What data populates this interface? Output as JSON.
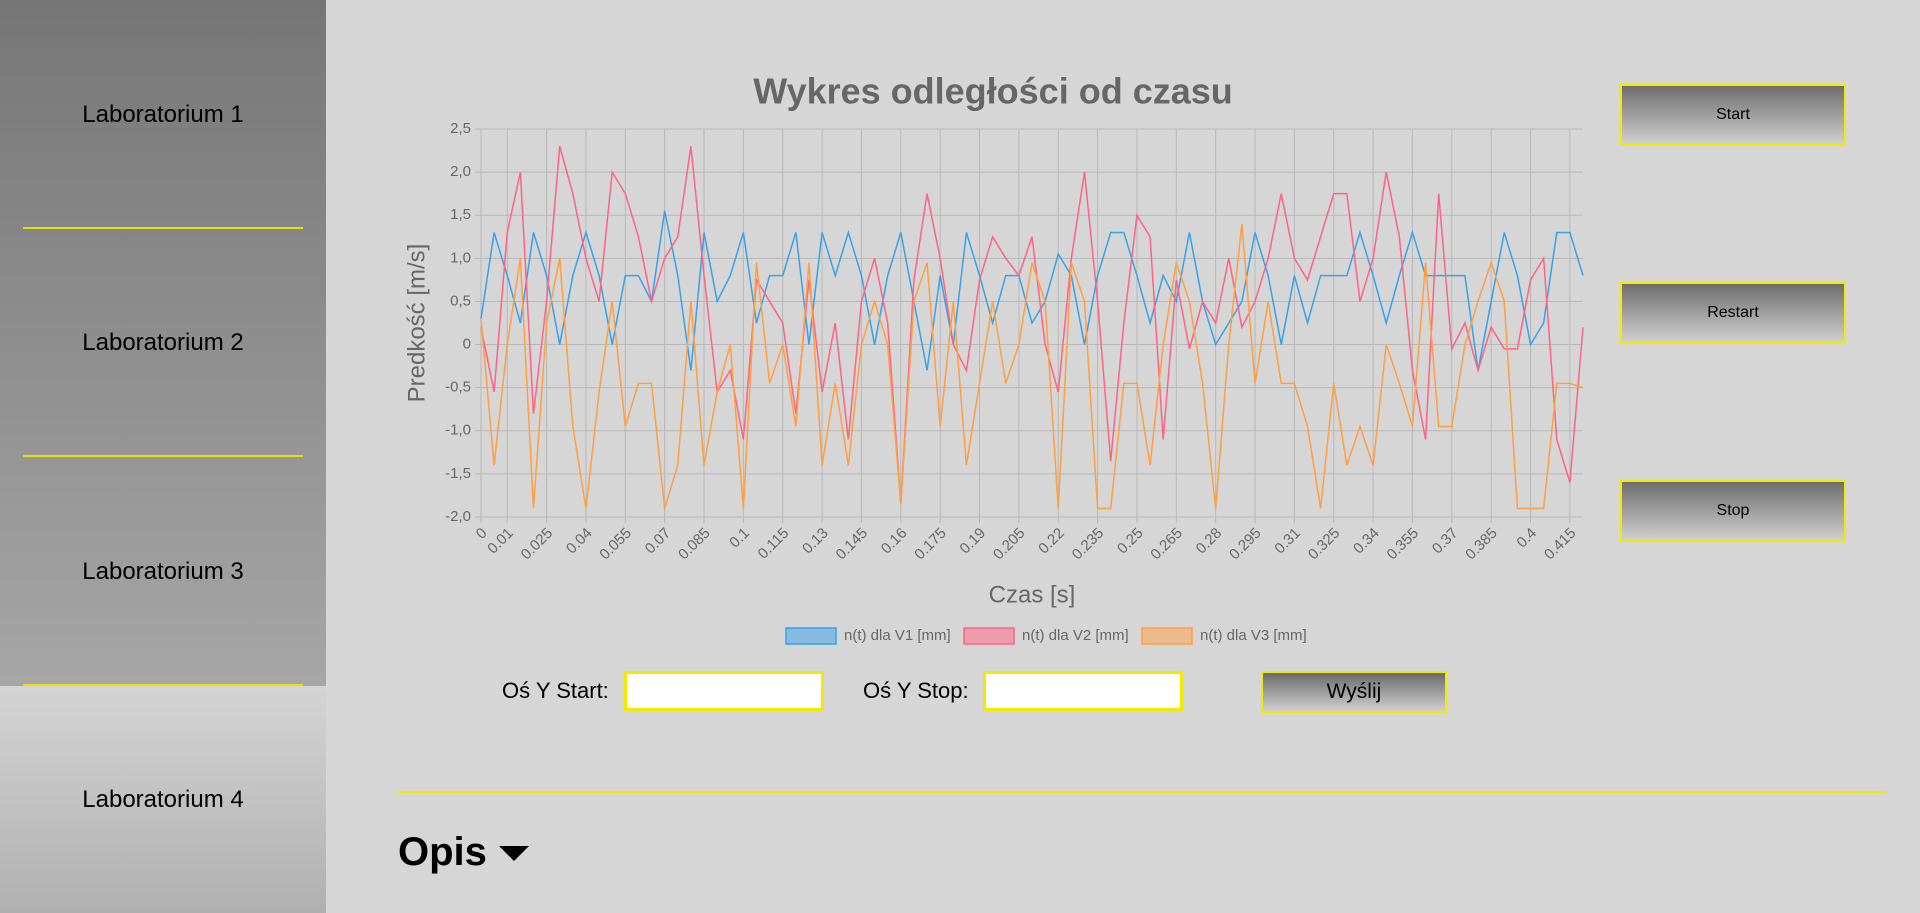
{
  "sidebar": {
    "items": [
      "Laboratorium 1",
      "Laboratorium 2",
      "Laboratorium 3",
      "Laboratorium 4"
    ]
  },
  "chart_data": {
    "type": "line",
    "title": "Wykres odległości od czasu",
    "x_label": "Czas [s]",
    "y_label": "Predkość [m/s]",
    "x": [
      0,
      0.005,
      0.01,
      0.015,
      0.02,
      0.025,
      0.03,
      0.035,
      0.04,
      0.045,
      0.05,
      0.055,
      0.06,
      0.065,
      0.07,
      0.075,
      0.08,
      0.085,
      0.09,
      0.095,
      0.1,
      0.105,
      0.11,
      0.115,
      0.12,
      0.125,
      0.13,
      0.135,
      0.14,
      0.145,
      0.15,
      0.155,
      0.16,
      0.165,
      0.17,
      0.175,
      0.18,
      0.185,
      0.19,
      0.195,
      0.2,
      0.205,
      0.21,
      0.215,
      0.22,
      0.225,
      0.23,
      0.235,
      0.24,
      0.245,
      0.25,
      0.255,
      0.26,
      0.265,
      0.27,
      0.275,
      0.28,
      0.285,
      0.29,
      0.295,
      0.3,
      0.305,
      0.31,
      0.315,
      0.32,
      0.325,
      0.33,
      0.335,
      0.34,
      0.345,
      0.35,
      0.355,
      0.36,
      0.365,
      0.37,
      0.375,
      0.38,
      0.385,
      0.39,
      0.395,
      0.4,
      0.405,
      0.41,
      0.415,
      0.42
    ],
    "series": [
      {
        "name": "n(t) dla V1 [mm]",
        "color": "#36a2eb",
        "values": [
          0.3,
          1.3,
          0.8,
          0.25,
          1.3,
          0.8,
          0,
          0.8,
          1.3,
          0.8,
          0,
          0.8,
          0.8,
          0.5,
          1.55,
          0.8,
          -0.3,
          1.3,
          0.5,
          0.8,
          1.3,
          0.25,
          0.8,
          0.8,
          1.3,
          0,
          1.3,
          0.8,
          1.3,
          0.8,
          0,
          0.8,
          1.3,
          0.5,
          -0.3,
          0.8,
          0,
          1.3,
          0.8,
          0.25,
          0.8,
          0.8,
          0.25,
          0.5,
          1.05,
          0.8,
          0,
          0.8,
          1.3,
          1.3,
          0.8,
          0.25,
          0.8,
          0.5,
          1.3,
          0.5,
          0,
          0.25,
          0.5,
          1.3,
          0.8,
          0,
          0.8,
          0.25,
          0.8,
          0.8,
          0.8,
          1.3,
          0.8,
          0.25,
          0.8,
          1.3,
          0.8,
          0.8,
          0.8,
          0.8,
          -0.3,
          0.5,
          1.3,
          0.8,
          0,
          0.25,
          1.3,
          1.3,
          0.8
        ]
      },
      {
        "name": "n(t) dla V2 [mm]",
        "color": "#ff6384",
        "values": [
          0.2,
          -0.55,
          1.3,
          2.0,
          -0.8,
          0.5,
          2.3,
          1.75,
          1.0,
          0.5,
          2.0,
          1.75,
          1.25,
          0.5,
          1.0,
          1.25,
          2.3,
          0.8,
          -0.55,
          -0.3,
          -1.1,
          0.75,
          0.5,
          0.25,
          -0.8,
          0.75,
          -0.55,
          0.25,
          -1.1,
          0.5,
          1.0,
          0.25,
          -1.85,
          0.75,
          1.75,
          1.0,
          0,
          -0.3,
          0.75,
          1.25,
          1.0,
          0.8,
          1.25,
          0,
          -0.55,
          1.0,
          2.0,
          0.5,
          -1.35,
          0.25,
          1.5,
          1.25,
          -1.1,
          0.75,
          -0.05,
          0.5,
          0.25,
          1.0,
          0.2,
          0.5,
          1.0,
          1.75,
          1.0,
          0.75,
          1.25,
          1.75,
          1.75,
          0.5,
          1.0,
          2.0,
          1.25,
          -0.3,
          -1.1,
          1.75,
          -0.05,
          0.25,
          -0.3,
          0.2,
          -0.05,
          -0.05,
          0.75,
          1.0,
          -1.1,
          -1.6,
          0.2
        ]
      },
      {
        "name": "n(t) dla V3 [mm]",
        "color": "#ff9f40",
        "values": [
          0.3,
          -1.4,
          0,
          1.0,
          -1.9,
          0.25,
          1.0,
          -0.95,
          -1.9,
          -0.55,
          0.5,
          -0.95,
          -0.45,
          -0.45,
          -1.9,
          -1.4,
          0.5,
          -1.4,
          -0.55,
          0,
          -1.9,
          0.95,
          -0.45,
          0,
          -0.95,
          0.95,
          -1.4,
          -0.45,
          -1.4,
          0,
          0.5,
          0,
          -1.85,
          0.5,
          0.95,
          -0.95,
          0.5,
          -1.4,
          -0.45,
          0.5,
          -0.45,
          0,
          0.95,
          0.5,
          -1.9,
          0.95,
          0.5,
          -1.9,
          -1.9,
          -0.45,
          -0.45,
          -1.4,
          0,
          0.95,
          0.5,
          -0.45,
          -1.9,
          0,
          1.4,
          -0.45,
          0.5,
          -0.45,
          -0.45,
          -0.95,
          -1.9,
          -0.45,
          -1.4,
          -0.95,
          -1.4,
          0,
          -0.45,
          -0.95,
          0.95,
          -0.95,
          -0.95,
          0,
          0.5,
          0.95,
          0.5,
          -1.9,
          -1.9,
          -1.9,
          -0.45,
          -0.45,
          -0.5
        ]
      }
    ],
    "xlim": [
      0,
      0.42
    ],
    "xticks": [
      0,
      0.01,
      0.025,
      0.04,
      0.055,
      0.07,
      0.085,
      0.1,
      0.115,
      0.13,
      0.145,
      0.16,
      0.175,
      0.19,
      0.205,
      0.22,
      0.235,
      0.25,
      0.265,
      0.28,
      0.295,
      0.31,
      0.325,
      0.34,
      0.355,
      0.37,
      0.385,
      0.4,
      0.415
    ],
    "ylim": [
      -2.0,
      2.5
    ],
    "yticks": [
      {
        "value": 2.5,
        "label": "2,5"
      },
      {
        "value": 2.0,
        "label": "2,0"
      },
      {
        "value": 1.5,
        "label": "1,5"
      },
      {
        "value": 1.0,
        "label": "1,0"
      },
      {
        "value": 0.5,
        "label": "0,5"
      },
      0,
      {
        "value": -0.5,
        "label": "-0,5"
      },
      {
        "value": -1.0,
        "label": "-1,0"
      },
      {
        "value": -1.5,
        "label": "-1,5"
      },
      {
        "value": -2.0,
        "label": "-2,0"
      }
    ],
    "grid": true,
    "legend": "bottom"
  },
  "buttons": [
    "Start",
    "Restart",
    "Stop"
  ],
  "form": {
    "start_label": "Oś Y Start:",
    "stop_label": "Oś Y Stop:",
    "submit": "Wyślij"
  },
  "description": {
    "title": "Opis"
  }
}
